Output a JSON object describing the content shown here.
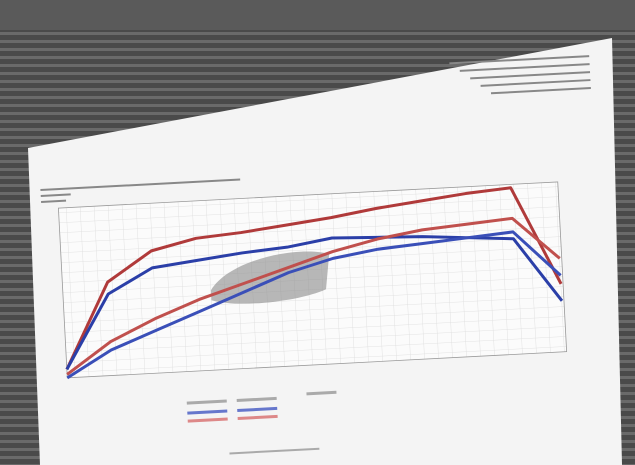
{
  "chart_data": {
    "type": "line",
    "x": [
      0,
      1,
      2,
      3,
      4,
      5,
      6,
      7,
      8,
      9,
      10,
      11
    ],
    "xlim": [
      0,
      11
    ],
    "ylim": [
      0,
      100
    ],
    "series": [
      {
        "color": "#b03a3a",
        "values": [
          5,
          55,
          72,
          78,
          80,
          83,
          86,
          90,
          93,
          96,
          98,
          40
        ]
      },
      {
        "color": "#2b3fa8",
        "values": [
          5,
          48,
          62,
          65,
          68,
          70,
          74,
          73,
          72,
          70,
          68,
          30
        ]
      },
      {
        "color": "#c0504d",
        "values": [
          2,
          20,
          32,
          42,
          50,
          58,
          66,
          72,
          76,
          78,
          80,
          55
        ]
      },
      {
        "color": "#3a4fb8",
        "values": [
          0,
          15,
          25,
          35,
          45,
          55,
          62,
          66,
          68,
          70,
          72,
          45
        ]
      }
    ]
  }
}
